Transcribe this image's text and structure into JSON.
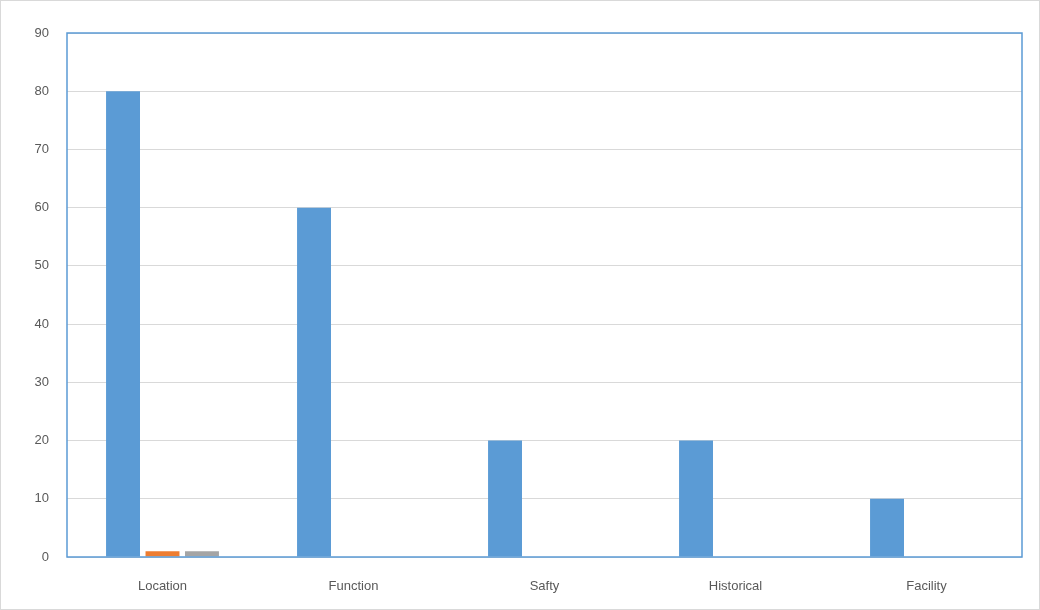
{
  "chart_data": {
    "type": "bar",
    "categories": [
      "Location",
      "Function",
      "Safty",
      "Historical",
      "Facility"
    ],
    "series": [
      {
        "color": "#5b9bd5",
        "values": [
          80,
          60,
          20,
          20,
          10
        ]
      },
      {
        "color": "#ed7d31",
        "values": [
          1,
          null,
          null,
          null,
          null
        ]
      },
      {
        "color": "#a5a5a5",
        "values": [
          1,
          null,
          null,
          null,
          null
        ]
      }
    ],
    "ylim": [
      0,
      90
    ],
    "yticks": [
      0,
      10,
      20,
      30,
      40,
      50,
      60,
      70,
      80,
      90
    ],
    "grid": "y",
    "legend": false
  }
}
